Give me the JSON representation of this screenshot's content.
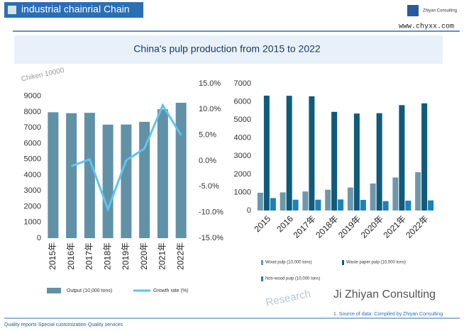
{
  "header": {
    "title": "industrial chainrial Chain",
    "brand": "Zhiyan Consulting",
    "url": "www.chyxx.com"
  },
  "title": "China's pulp production from 2015 to 2022",
  "chart_data": [
    {
      "type": "combo",
      "y_label": "Chiken 10000",
      "categories": [
        "2015年",
        "2016年",
        "2017年",
        "2018年",
        "2019年",
        "2020年",
        "2021年",
        "2022年"
      ],
      "series": [
        {
          "name": "Output (10,000 tons)",
          "kind": "bar",
          "color": "#6191a6",
          "values": [
            7984,
            7925,
            7949,
            7201,
            7207,
            7378,
            8177,
            8587
          ]
        },
        {
          "name": "Growth rate (%)",
          "kind": "line",
          "axis": "y2",
          "color": "#5ec4ee",
          "values": [
            null,
            -1.0,
            0.3,
            -9.4,
            0.1,
            2.4,
            10.8,
            5.0
          ]
        }
      ],
      "ylim": [
        0,
        9800
      ],
      "yticks": [
        0,
        1000,
        2000,
        3000,
        4000,
        5000,
        6000,
        7000,
        8000,
        9000
      ],
      "y2lim": [
        -15,
        15
      ],
      "y2ticks": [
        {
          "value": 15,
          "label": "15.0%"
        },
        {
          "value": 10,
          "label": "10.0%"
        },
        {
          "value": 5,
          "label": "5.0%"
        },
        {
          "value": 0,
          "label": "0.0%"
        },
        {
          "value": -5,
          "label": "-5.0%"
        },
        {
          "value": -10,
          "label": "-10.0%"
        },
        {
          "value": -15,
          "label": "-15.0%"
        }
      ],
      "legend": "bottom"
    },
    {
      "type": "bar",
      "categories": [
        "2015",
        "2016",
        "2017年",
        "2018年",
        "2019年",
        "2020年",
        "2021年",
        "2022年"
      ],
      "series": [
        {
          "name": "Wood pulp (10,000 tons)",
          "color": "#6f97aa",
          "values": [
            980,
            1000,
            1050,
            1147,
            1268,
            1490,
            1821,
            2115
          ]
        },
        {
          "name": "Waste paper pulp (10,000 tons)",
          "color": "#0f5b7b",
          "values": [
            6338,
            6329,
            6302,
            5444,
            5351,
            5370,
            5814,
            5914
          ]
        },
        {
          "name": "Non-wood pulp (10,000 tons)",
          "color": "#1f80b5",
          "values": [
            686,
            596,
            597,
            610,
            588,
            518,
            542,
            558
          ]
        }
      ],
      "ylim": [
        0,
        7000
      ],
      "yticks": [
        0,
        1000,
        2000,
        3000,
        4000,
        5000,
        6000,
        7000
      ],
      "legend": "bottom"
    }
  ],
  "brand_large": "Ji Zhiyan Consulting",
  "watermark": "Research",
  "source": "1. Source of data: Compiled by Zhiyan Consulting",
  "footer": "Quality reports·Special customization·Quality services"
}
